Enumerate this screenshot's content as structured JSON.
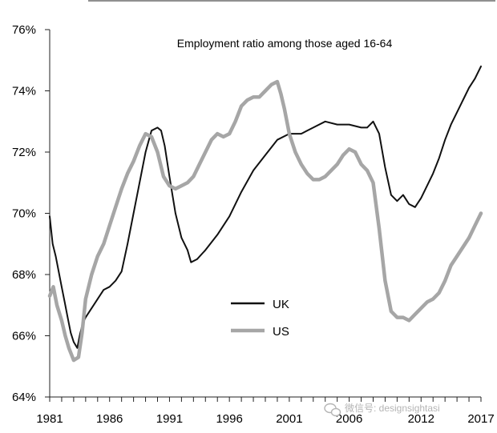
{
  "chart_data": {
    "type": "line",
    "title": "Employment ratio among those aged 16-64",
    "xlabel": "",
    "ylabel": "",
    "xlim": [
      1981,
      2017
    ],
    "ylim": [
      64,
      76
    ],
    "x_ticks": [
      1981,
      1986,
      1991,
      1996,
      2001,
      2006,
      2012,
      2017
    ],
    "x_tick_labels": [
      "1981",
      "1986",
      "1991",
      "1996",
      "2001",
      "2006",
      "2012",
      "2017"
    ],
    "y_ticks": [
      64,
      66,
      68,
      70,
      72,
      74,
      76
    ],
    "y_tick_labels": [
      "64%",
      "66%",
      "68%",
      "70%",
      "72%",
      "74%",
      "76%"
    ],
    "grid": false,
    "legend_position": "lower-center",
    "series": [
      {
        "name": "UK",
        "color": "#111111",
        "points": [
          [
            1981.0,
            69.9
          ],
          [
            1981.25,
            69.0
          ],
          [
            1981.5,
            68.6
          ],
          [
            1981.75,
            68.1
          ],
          [
            1982.0,
            67.6
          ],
          [
            1982.25,
            67.1
          ],
          [
            1982.5,
            66.6
          ],
          [
            1982.75,
            66.1
          ],
          [
            1983.0,
            65.8
          ],
          [
            1983.3,
            65.6
          ],
          [
            1983.5,
            66.0
          ],
          [
            1983.75,
            66.4
          ],
          [
            1984.0,
            66.6
          ],
          [
            1984.5,
            66.9
          ],
          [
            1985.0,
            67.2
          ],
          [
            1985.5,
            67.5
          ],
          [
            1986.0,
            67.6
          ],
          [
            1986.5,
            67.8
          ],
          [
            1987.0,
            68.1
          ],
          [
            1987.5,
            69.0
          ],
          [
            1988.0,
            70.0
          ],
          [
            1988.5,
            71.0
          ],
          [
            1989.0,
            72.0
          ],
          [
            1989.5,
            72.7
          ],
          [
            1990.0,
            72.8
          ],
          [
            1990.3,
            72.7
          ],
          [
            1990.6,
            72.2
          ],
          [
            1991.0,
            71.2
          ],
          [
            1991.5,
            70.0
          ],
          [
            1992.0,
            69.2
          ],
          [
            1992.5,
            68.8
          ],
          [
            1992.8,
            68.4
          ],
          [
            1993.3,
            68.5
          ],
          [
            1994.0,
            68.8
          ],
          [
            1995.0,
            69.3
          ],
          [
            1996.0,
            69.9
          ],
          [
            1997.0,
            70.7
          ],
          [
            1998.0,
            71.4
          ],
          [
            1999.0,
            71.9
          ],
          [
            2000.0,
            72.4
          ],
          [
            2001.0,
            72.6
          ],
          [
            2002.0,
            72.6
          ],
          [
            2003.0,
            72.8
          ],
          [
            2004.0,
            73.0
          ],
          [
            2005.0,
            72.9
          ],
          [
            2006.0,
            72.9
          ],
          [
            2007.0,
            72.8
          ],
          [
            2007.5,
            72.8
          ],
          [
            2008.0,
            73.0
          ],
          [
            2008.5,
            72.6
          ],
          [
            2009.0,
            71.5
          ],
          [
            2009.5,
            70.6
          ],
          [
            2010.0,
            70.4
          ],
          [
            2010.5,
            70.6
          ],
          [
            2011.0,
            70.3
          ],
          [
            2011.5,
            70.2
          ],
          [
            2012.0,
            70.5
          ],
          [
            2012.5,
            70.9
          ],
          [
            2013.0,
            71.3
          ],
          [
            2013.5,
            71.8
          ],
          [
            2014.0,
            72.4
          ],
          [
            2014.5,
            72.9
          ],
          [
            2015.0,
            73.3
          ],
          [
            2015.5,
            73.7
          ],
          [
            2016.0,
            74.1
          ],
          [
            2016.5,
            74.4
          ],
          [
            2017.0,
            74.8
          ]
        ]
      },
      {
        "name": "US",
        "color": "#a6a6a6",
        "points": [
          [
            1981.0,
            67.3
          ],
          [
            1981.3,
            67.6
          ],
          [
            1981.6,
            67.0
          ],
          [
            1982.0,
            66.5
          ],
          [
            1982.3,
            66.0
          ],
          [
            1982.6,
            65.6
          ],
          [
            1983.0,
            65.2
          ],
          [
            1983.4,
            65.3
          ],
          [
            1983.7,
            66.1
          ],
          [
            1984.0,
            67.2
          ],
          [
            1984.5,
            68.0
          ],
          [
            1985.0,
            68.6
          ],
          [
            1985.5,
            69.0
          ],
          [
            1986.0,
            69.6
          ],
          [
            1986.5,
            70.2
          ],
          [
            1987.0,
            70.8
          ],
          [
            1987.5,
            71.3
          ],
          [
            1988.0,
            71.7
          ],
          [
            1988.5,
            72.2
          ],
          [
            1989.0,
            72.6
          ],
          [
            1989.5,
            72.5
          ],
          [
            1990.0,
            72.0
          ],
          [
            1990.5,
            71.2
          ],
          [
            1991.0,
            70.9
          ],
          [
            1991.5,
            70.8
          ],
          [
            1992.0,
            70.9
          ],
          [
            1992.5,
            71.0
          ],
          [
            1993.0,
            71.2
          ],
          [
            1993.5,
            71.6
          ],
          [
            1994.0,
            72.0
          ],
          [
            1994.5,
            72.4
          ],
          [
            1995.0,
            72.6
          ],
          [
            1995.5,
            72.5
          ],
          [
            1996.0,
            72.6
          ],
          [
            1996.5,
            73.0
          ],
          [
            1997.0,
            73.5
          ],
          [
            1997.5,
            73.7
          ],
          [
            1998.0,
            73.8
          ],
          [
            1998.5,
            73.8
          ],
          [
            1999.0,
            74.0
          ],
          [
            1999.5,
            74.2
          ],
          [
            2000.0,
            74.3
          ],
          [
            2000.3,
            73.9
          ],
          [
            2000.6,
            73.4
          ],
          [
            2001.0,
            72.6
          ],
          [
            2001.5,
            72.0
          ],
          [
            2002.0,
            71.6
          ],
          [
            2002.5,
            71.3
          ],
          [
            2003.0,
            71.1
          ],
          [
            2003.5,
            71.1
          ],
          [
            2004.0,
            71.2
          ],
          [
            2004.5,
            71.4
          ],
          [
            2005.0,
            71.6
          ],
          [
            2005.5,
            71.9
          ],
          [
            2006.0,
            72.1
          ],
          [
            2006.5,
            72.0
          ],
          [
            2007.0,
            71.6
          ],
          [
            2007.5,
            71.4
          ],
          [
            2008.0,
            71.0
          ],
          [
            2008.5,
            69.5
          ],
          [
            2009.0,
            67.8
          ],
          [
            2009.5,
            66.8
          ],
          [
            2010.0,
            66.6
          ],
          [
            2010.5,
            66.6
          ],
          [
            2011.0,
            66.5
          ],
          [
            2011.5,
            66.7
          ],
          [
            2012.0,
            66.9
          ],
          [
            2012.5,
            67.1
          ],
          [
            2013.0,
            67.2
          ],
          [
            2013.5,
            67.4
          ],
          [
            2014.0,
            67.8
          ],
          [
            2014.5,
            68.3
          ],
          [
            2015.0,
            68.6
          ],
          [
            2015.5,
            68.9
          ],
          [
            2016.0,
            69.2
          ],
          [
            2016.5,
            69.6
          ],
          [
            2017.0,
            70.0
          ]
        ]
      }
    ]
  },
  "watermark": {
    "text": "微信号: designsightasi",
    "icon": "wechat-icon"
  }
}
